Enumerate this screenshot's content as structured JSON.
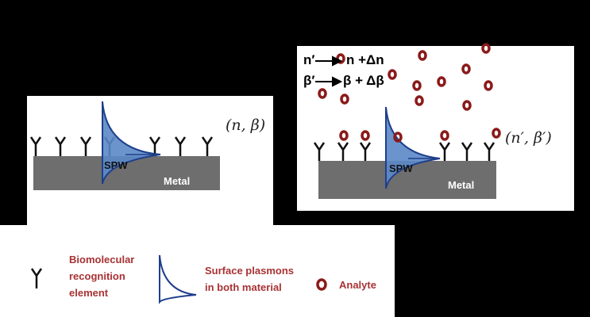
{
  "left_panel": {
    "spw_label": "SPW",
    "metal_label": "Metal",
    "state_label": "(n, β)"
  },
  "right_panel": {
    "spw_label": "SPW",
    "metal_label": "Metal",
    "state_label": "(n′, β′)",
    "eq_n_from": "n′",
    "eq_n_to": "n +Δn",
    "eq_beta_from": "β′",
    "eq_beta_to": "β + Δβ"
  },
  "legend": {
    "recognition_line1": "Biomolecular",
    "recognition_line2": "recognition",
    "recognition_line3": "element",
    "plasmon_line1": "Surface plasmons",
    "plasmon_line2": "in both material",
    "analyte": "Analyte"
  },
  "colors": {
    "metal": "#6e6e6e",
    "plasmon_fill": "#5b88c8",
    "plasmon_stroke": "#1f3f8c",
    "analyte": "#8b1a1a",
    "legend_text": "#a83234"
  }
}
